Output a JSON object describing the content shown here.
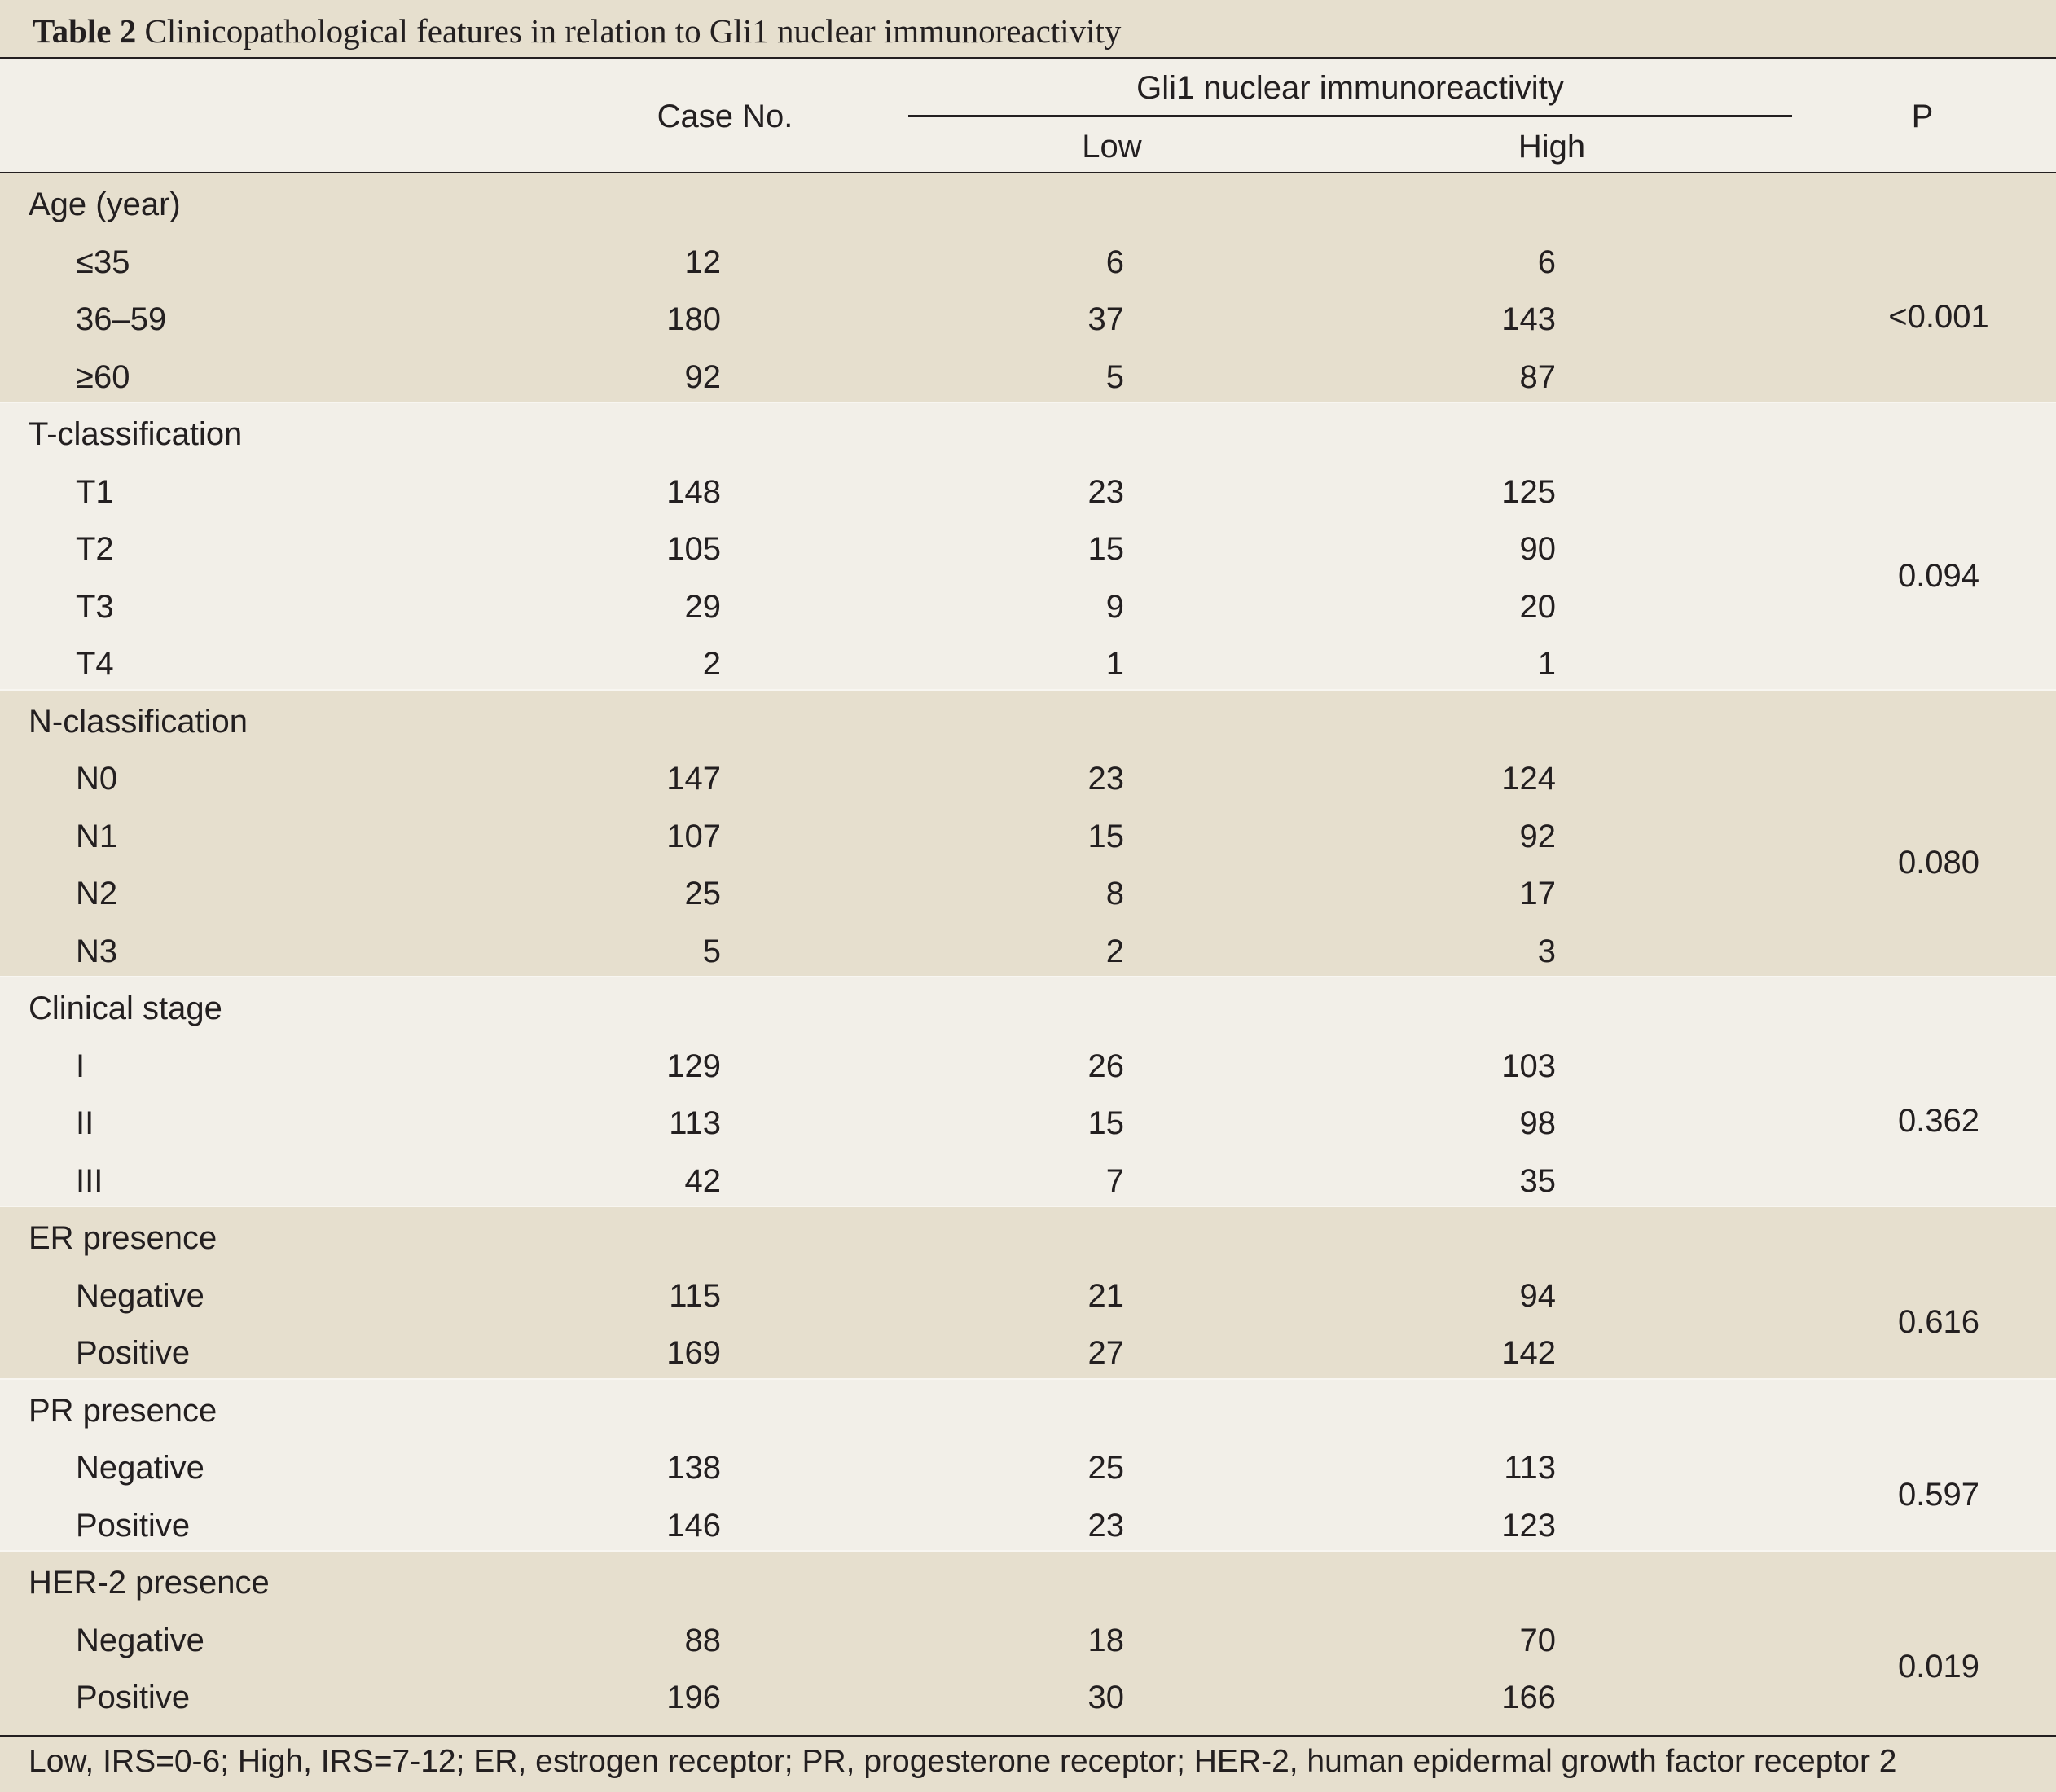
{
  "title": {
    "label": "Table 2",
    "text": "Clinicopathological features in relation to Gli1 nuclear immunoreactivity"
  },
  "header": {
    "case_no": "Case No.",
    "group": "Gli1 nuclear immunoreactivity",
    "low": "Low",
    "high": "High",
    "p": "P"
  },
  "sections": [
    {
      "label": "Age (year)",
      "p": "<0.001",
      "rows": [
        {
          "label": "≤35",
          "case": "12",
          "low": "6",
          "high": "6"
        },
        {
          "label": "36–59",
          "case": "180",
          "low": "37",
          "high": "143"
        },
        {
          "label": "≥60",
          "case": "92",
          "low": "5",
          "high": "87"
        }
      ]
    },
    {
      "label": "T-classification",
      "p": "0.094",
      "rows": [
        {
          "label": "T1",
          "case": "148",
          "low": "23",
          "high": "125"
        },
        {
          "label": "T2",
          "case": "105",
          "low": "15",
          "high": "90"
        },
        {
          "label": "T3",
          "case": "29",
          "low": "9",
          "high": "20"
        },
        {
          "label": "T4",
          "case": "2",
          "low": "1",
          "high": "1"
        }
      ]
    },
    {
      "label": "N-classification",
      "p": "0.080",
      "rows": [
        {
          "label": "N0",
          "case": "147",
          "low": "23",
          "high": "124"
        },
        {
          "label": "N1",
          "case": "107",
          "low": "15",
          "high": "92"
        },
        {
          "label": "N2",
          "case": "25",
          "low": "8",
          "high": "17"
        },
        {
          "label": "N3",
          "case": "5",
          "low": "2",
          "high": "3"
        }
      ]
    },
    {
      "label": "Clinical stage",
      "p": "0.362",
      "rows": [
        {
          "label": "I",
          "case": "129",
          "low": "26",
          "high": "103"
        },
        {
          "label": "II",
          "case": "113",
          "low": "15",
          "high": "98"
        },
        {
          "label": "III",
          "case": "42",
          "low": "7",
          "high": "35"
        }
      ]
    },
    {
      "label": "ER presence",
      "p": "0.616",
      "rows": [
        {
          "label": "Negative",
          "case": "115",
          "low": "21",
          "high": "94"
        },
        {
          "label": "Positive",
          "case": "169",
          "low": "27",
          "high": "142"
        }
      ]
    },
    {
      "label": "PR presence",
      "p": "0.597",
      "rows": [
        {
          "label": "Negative",
          "case": "138",
          "low": "25",
          "high": "113"
        },
        {
          "label": "Positive",
          "case": "146",
          "low": "23",
          "high": "123"
        }
      ]
    },
    {
      "label": "HER-2 presence",
      "p": "0.019",
      "rows": [
        {
          "label": "Negative",
          "case": "88",
          "low": "18",
          "high": "70"
        },
        {
          "label": "Positive",
          "case": "196",
          "low": "30",
          "high": "166"
        }
      ]
    }
  ],
  "footnote": "Low, IRS=0-6; High, IRS=7-12; ER, estrogen receptor; PR, progesterone receptor; HER-2, human epidermal growth factor receptor 2",
  "colors": {
    "band_dark": "#e6dfce",
    "band_light": "#f2efe8",
    "text": "#231f20"
  }
}
